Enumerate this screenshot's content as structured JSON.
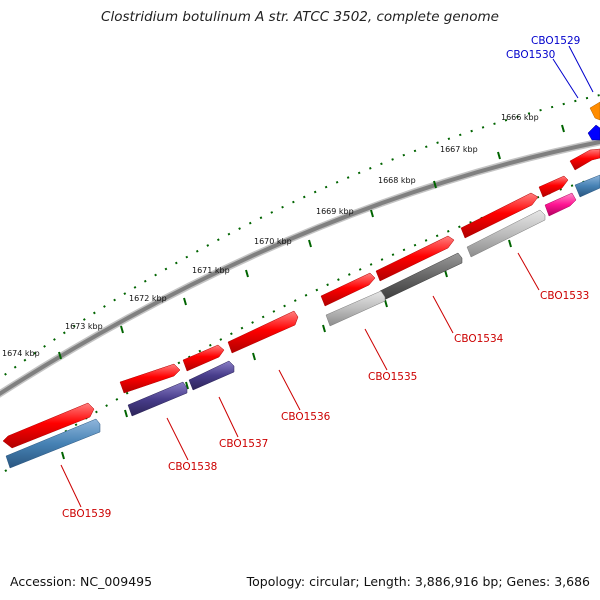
{
  "title": "Clostridium botulinum A str. ATCC 3502, complete genome",
  "accession": "Accession: NC_009495",
  "summary": "Topology: circular; Length: 3,886,916 bp; Genes: 3,686",
  "scale_labels": [
    "1666 kbp",
    "1667 kbp",
    "1668 kbp",
    "1669 kbp",
    "1670 kbp",
    "1671 kbp",
    "1672 kbp",
    "1673 kbp",
    "1674 kbp"
  ],
  "gene_labels": [
    "CBO1529",
    "CBO1530",
    "CBO1533",
    "CBO1534",
    "CBO1535",
    "CBO1536",
    "CBO1537",
    "CBO1538",
    "CBO1539"
  ],
  "colors": {
    "backbone": "#808080",
    "forward_cds": "#ff0000",
    "gray_light": "#bbbbbb",
    "gray_dark": "#666666",
    "steel_blue": "#4682b4",
    "dark_slate_blue": "#483d8b",
    "deep_pink": "#ff1493",
    "orange": "#ff8c00",
    "blue": "#0000ff",
    "tick_green": "#006400",
    "label_red": "#cc0000",
    "label_blue": "#0000cc"
  }
}
